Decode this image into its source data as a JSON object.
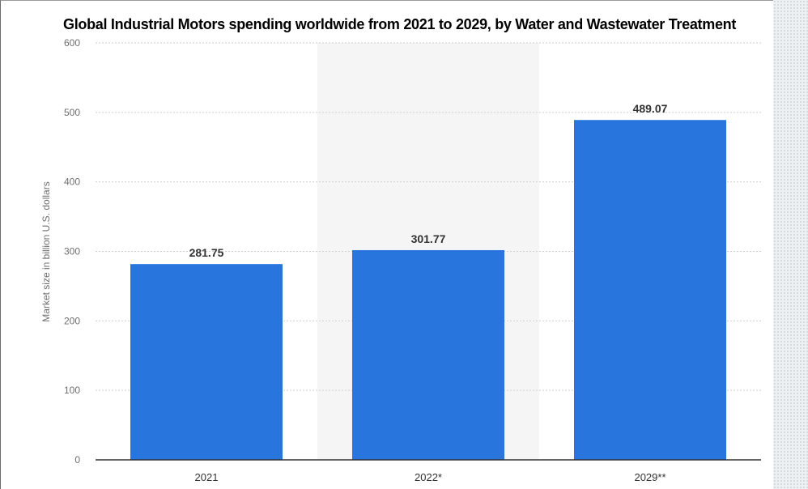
{
  "chart_data": {
    "type": "bar",
    "title": "Global Industrial Motors spending worldwide from 2021 to 2029, by Water and Wastewater Treatment",
    "xlabel": "",
    "ylabel": "Market size in billion U.S. dollars",
    "categories": [
      "2021",
      "2022*",
      "2029**"
    ],
    "values": [
      281.75,
      301.77,
      489.07
    ],
    "value_labels": [
      "281.75",
      "301.77",
      "489.07"
    ],
    "ylim": [
      0,
      600
    ],
    "yticks": [
      0,
      100,
      200,
      300,
      400,
      500,
      600
    ],
    "ytick_labels": [
      "0",
      "100",
      "200",
      "300",
      "400",
      "500",
      "600"
    ],
    "grid": true,
    "highlighted_category": "2022*",
    "colors": {
      "bar": "#2775dd",
      "highlight_band": "#f5f5f5",
      "grid": "#cfcfcf",
      "axis": "#333333"
    }
  }
}
